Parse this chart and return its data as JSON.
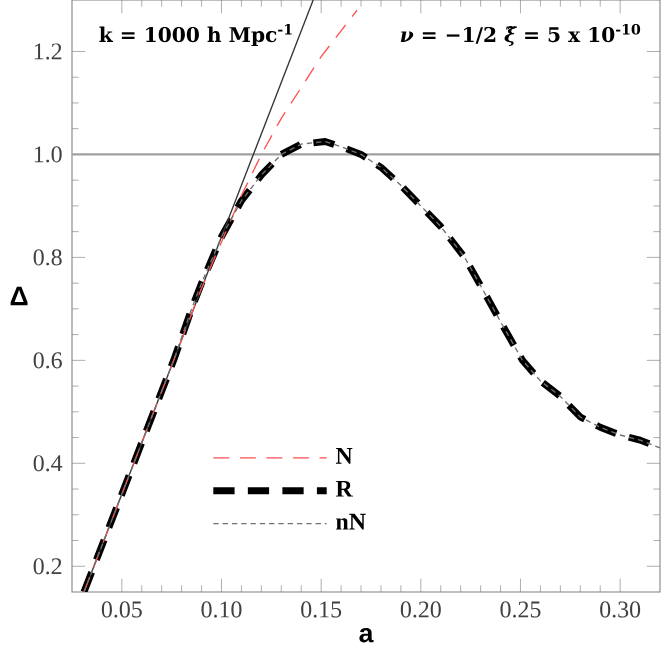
{
  "chart_data": {
    "type": "line",
    "xlabel": "a",
    "ylabel": "Δ",
    "annotations": [
      "k = 1000 h Mpc$^{-1}$",
      "*ν* = −1/2   *ξ̃* = 5 x 10$^{-10}$"
    ],
    "xlim": [
      0.025,
      0.32
    ],
    "ylim": [
      0.15,
      1.3
    ],
    "xticks": [
      0.05,
      {
        "value": 0.1,
        "label": "0.10"
      },
      0.15,
      {
        "value": 0.2,
        "label": "0.20"
      },
      0.25,
      {
        "value": 0.3,
        "label": "0.30"
      }
    ],
    "yticks": [
      0.2,
      0.4,
      0.6,
      0.8,
      {
        "value": 1.0,
        "label": "1.0"
      },
      1.2
    ],
    "grid": false,
    "legend": "bottom left",
    "marker": "none",
    "ref_lines": [
      {
        "axis": "y",
        "value": 1.0,
        "color": "#a0a0a0"
      }
    ],
    "series": [
      {
        "name": "N",
        "color": "#ff5050",
        "line_style": "dashed",
        "x": [
          0.031,
          0.05,
          0.07,
          0.09,
          0.1,
          0.11,
          0.12,
          0.13,
          0.14,
          0.15,
          0.16,
          0.168
        ],
        "values": [
          0.15,
          0.34,
          0.54,
          0.74,
          0.83,
          0.92,
          1.0,
          1.07,
          1.13,
          1.19,
          1.24,
          1.28
        ]
      },
      {
        "name": "R",
        "color": "#000000",
        "line_style": "dashed",
        "x": [
          0.031,
          0.036,
          0.05,
          0.06,
          0.07,
          0.076,
          0.085,
          0.09,
          0.1,
          0.11,
          0.12,
          0.13,
          0.14,
          0.152,
          0.16,
          0.17,
          0.18,
          0.19,
          0.2,
          0.21,
          0.222,
          0.23,
          0.24,
          0.251,
          0.26,
          0.27,
          0.28,
          0.29,
          0.3,
          0.31,
          0.32
        ],
        "values": [
          0.15,
          0.2,
          0.34,
          0.44,
          0.54,
          0.6,
          0.7,
          0.75,
          0.84,
          0.91,
          0.96,
          1.0,
          1.02,
          1.025,
          1.015,
          1.0,
          0.975,
          0.94,
          0.9,
          0.86,
          0.8,
          0.745,
          0.675,
          0.6,
          0.56,
          0.53,
          0.49,
          0.47,
          0.455,
          0.445,
          0.43
        ]
      },
      {
        "name": "nN",
        "color": "#707070",
        "line_style": "dashed",
        "x": [
          0.031,
          0.036,
          0.05,
          0.06,
          0.07,
          0.076,
          0.085,
          0.09,
          0.1,
          0.11,
          0.12,
          0.13,
          0.14,
          0.152,
          0.16,
          0.17,
          0.18,
          0.19,
          0.2,
          0.21,
          0.222,
          0.23,
          0.24,
          0.251,
          0.26,
          0.27,
          0.28,
          0.29,
          0.3,
          0.31,
          0.32
        ],
        "values": [
          0.15,
          0.2,
          0.34,
          0.44,
          0.54,
          0.6,
          0.7,
          0.75,
          0.84,
          0.91,
          0.96,
          1.0,
          1.02,
          1.025,
          1.015,
          1.0,
          0.975,
          0.94,
          0.9,
          0.86,
          0.8,
          0.745,
          0.675,
          0.6,
          0.56,
          0.53,
          0.49,
          0.47,
          0.455,
          0.445,
          0.43
        ]
      },
      {
        "color": "#333333",
        "line_style": "solid",
        "x": [
          0.031,
          0.146
        ],
        "values": [
          0.15,
          1.3
        ]
      }
    ]
  }
}
